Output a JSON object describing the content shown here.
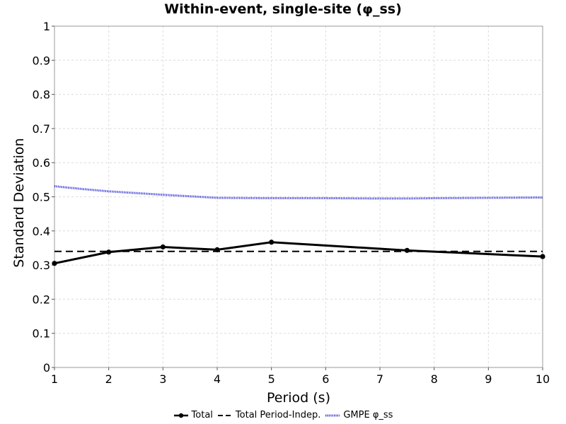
{
  "chart_data": {
    "type": "line",
    "title": "Within-event, single-site (φ_ss)",
    "xlabel": "Period (s)",
    "ylabel": "Standard Deviation",
    "xlim": [
      1,
      10
    ],
    "ylim": [
      0,
      1
    ],
    "xticks": [
      "1",
      "2",
      "3",
      "4",
      "5",
      "6",
      "7",
      "8",
      "9",
      "10"
    ],
    "yticks": [
      "0",
      "0.1",
      "0.2",
      "0.3",
      "0.4",
      "0.5",
      "0.6",
      "0.7",
      "0.8",
      "0.9",
      "1"
    ],
    "grid": true,
    "legend_position": "bottom",
    "series": [
      {
        "name": "Total",
        "style": "solid-markers",
        "color": "#000000",
        "x": [
          1,
          2,
          3,
          4,
          5,
          7.5,
          10
        ],
        "y": [
          0.305,
          0.338,
          0.353,
          0.345,
          0.367,
          0.343,
          0.325
        ]
      },
      {
        "name": "Total Period-Indep.",
        "style": "dashed",
        "color": "#000000",
        "x": [
          1,
          10
        ],
        "y": [
          0.34,
          0.34
        ]
      },
      {
        "name": "GMPE φ_ss",
        "style": "dotted",
        "color": "#3b3bd6",
        "x": [
          1,
          1.5,
          2,
          3,
          4,
          5,
          6,
          7,
          7.5,
          8,
          9,
          10
        ],
        "y": [
          0.531,
          0.523,
          0.516,
          0.506,
          0.497,
          0.496,
          0.496,
          0.495,
          0.495,
          0.496,
          0.497,
          0.498
        ]
      }
    ]
  }
}
